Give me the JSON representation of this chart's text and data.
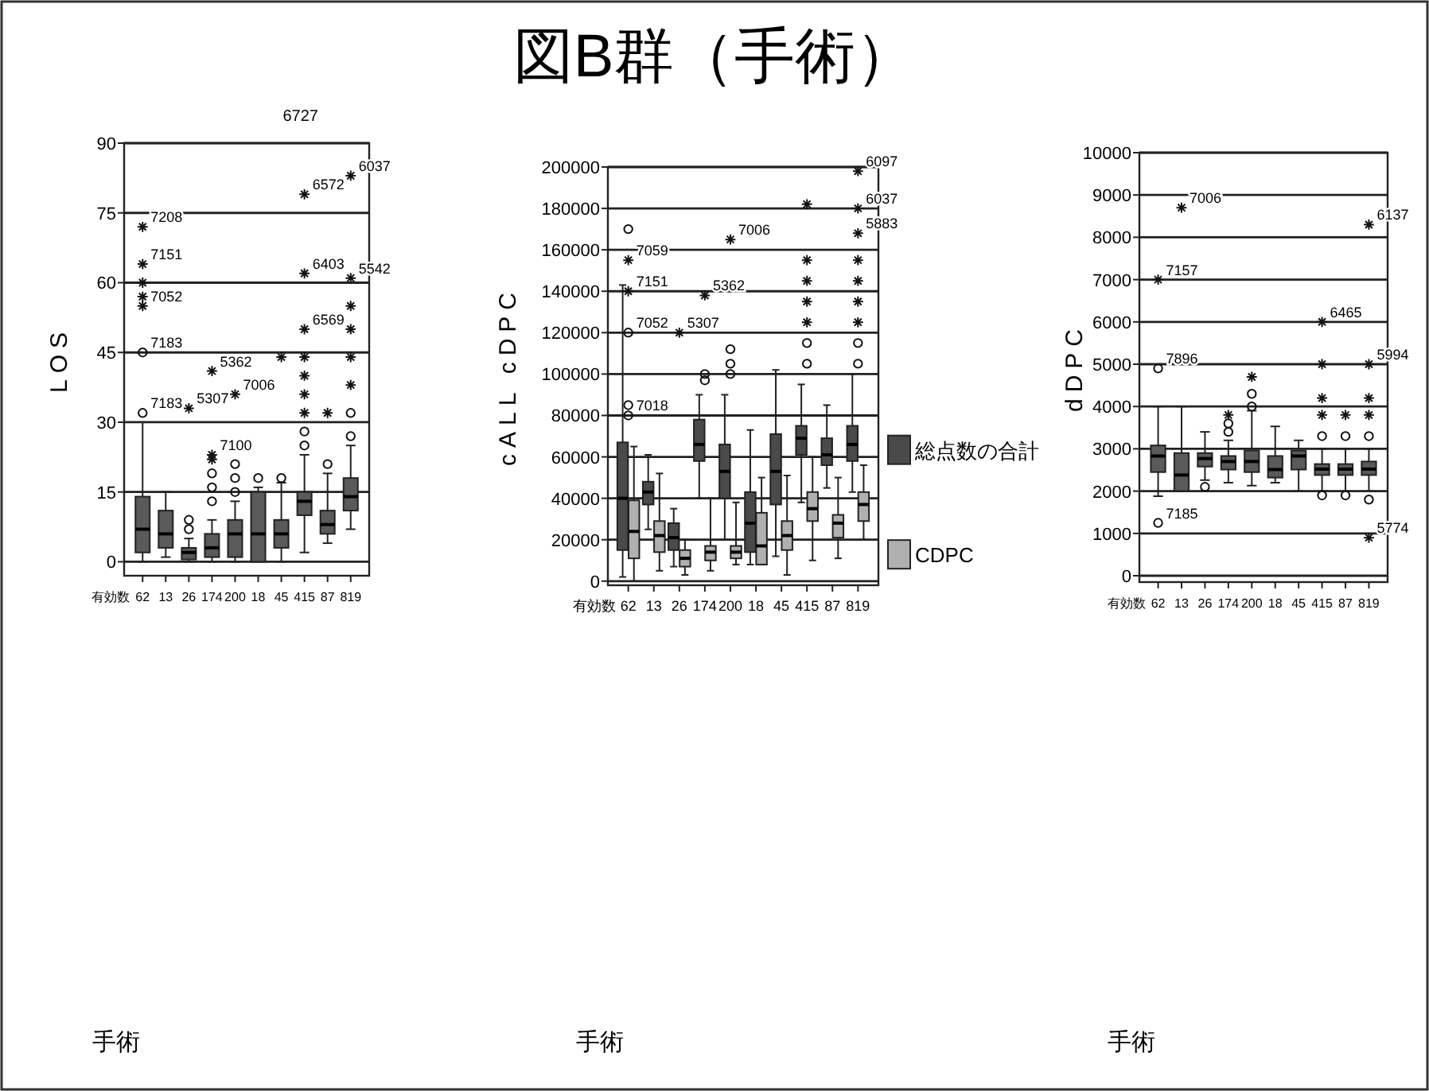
{
  "chart_data": [
    {
      "type": "box",
      "ylabel": "LOS",
      "xlabel": "手術",
      "categories": [
        "62",
        "13",
        "26",
        "174",
        "200",
        "18",
        "45",
        "415",
        "87",
        "819"
      ],
      "ylim": [
        -3,
        90
      ],
      "yticks": [
        0,
        15,
        30,
        45,
        60,
        75,
        90
      ],
      "grid": "y",
      "series": [
        {
          "color": "#5a5a5a",
          "boxes": [
            {
              "low": 0,
              "q1": 2,
              "median": 7,
              "q3": 14,
              "high": 30
            },
            {
              "low": 1,
              "q1": 3,
              "median": 6,
              "q3": 11,
              "high": 15
            },
            {
              "low": 0,
              "q1": 0.5,
              "median": 2,
              "q3": 3,
              "high": 5
            },
            {
              "low": 0,
              "q1": 1,
              "median": 3,
              "q3": 6,
              "high": 9
            },
            {
              "low": 0,
              "q1": 1,
              "median": 6,
              "q3": 9,
              "high": 13
            },
            {
              "low": 0,
              "q1": 0,
              "median": 6,
              "q3": 15,
              "high": 16
            },
            {
              "low": 0,
              "q1": 3,
              "median": 6,
              "q3": 9,
              "high": 17
            },
            {
              "low": 2,
              "q1": 10,
              "median": 13,
              "q3": 15,
              "high": 23
            },
            {
              "low": 4,
              "q1": 6,
              "median": 8,
              "q3": 11,
              "high": 19
            },
            {
              "low": 7,
              "q1": 11,
              "median": 14,
              "q3": 18,
              "high": 25
            }
          ]
        },
        {
          "type": "scatter",
          "marker": "circle",
          "color": "#111111",
          "x": [
            "62",
            "62",
            "26",
            "26",
            "174",
            "174",
            "174",
            "200",
            "200",
            "200",
            "18",
            "45",
            "415",
            "415",
            "87",
            "819",
            "819"
          ],
          "values": [
            32,
            45,
            7,
            9,
            13,
            16,
            19,
            15,
            18,
            21,
            18,
            18,
            25,
            28,
            21,
            27,
            32
          ]
        },
        {
          "type": "scatter",
          "marker": "cross",
          "color": "#111111",
          "x": [
            "62",
            "62",
            "62",
            "62",
            "62",
            "26",
            "174",
            "174",
            "174",
            "200",
            "45",
            "415",
            "415",
            "415",
            "415",
            "415",
            "415",
            "415",
            "87",
            "819",
            "819",
            "819",
            "819",
            "819",
            "819"
          ],
          "values": [
            55,
            57,
            60,
            64,
            72,
            33,
            22,
            23,
            41,
            36,
            44,
            32,
            36,
            40,
            44,
            50,
            62,
            79,
            32,
            38,
            44,
            50,
            55,
            61,
            83
          ]
        }
      ],
      "annotations": [
        "有効数",
        "6727",
        {
          "text": "7183",
          "x": "62",
          "y": 32
        },
        {
          "text": "7183",
          "x": "62",
          "y": 45
        },
        {
          "text": "7052",
          "x": "62",
          "y": 55
        },
        {
          "text": "7151",
          "x": "62",
          "y": 64
        },
        {
          "text": "7208",
          "x": "62",
          "y": 72
        },
        {
          "text": "5307",
          "x": "26",
          "y": 33
        },
        {
          "text": "7100",
          "x": "174",
          "y": 23
        },
        {
          "text": "5362",
          "x": "174",
          "y": 41
        },
        {
          "text": "7006",
          "x": "200",
          "y": 36
        },
        {
          "text": "6569",
          "x": "415",
          "y": 50
        },
        {
          "text": "6403",
          "x": "415",
          "y": 62
        },
        {
          "text": "6572",
          "x": "415",
          "y": 79
        },
        {
          "text": "5542",
          "x": "819",
          "y": 61
        },
        {
          "text": "6037",
          "x": "819",
          "y": 83
        }
      ]
    },
    {
      "type": "box",
      "title": "図B群（手術）",
      "ylabel": "cALL cDPC",
      "xlabel": "手術",
      "categories": [
        "62",
        "13",
        "26",
        "174",
        "200",
        "18",
        "45",
        "415",
        "87",
        "819"
      ],
      "ylim": [
        -2000,
        200000
      ],
      "yticks": [
        0,
        20000,
        40000,
        60000,
        80000,
        100000,
        120000,
        140000,
        160000,
        180000,
        200000
      ],
      "grid": "y",
      "legend": "right",
      "series": [
        {
          "name": "総点数の合計",
          "color": "#4a4a4a",
          "boxes": [
            {
              "low": 2000,
              "q1": 15000,
              "median": 40000,
              "q3": 67000,
              "high": 143000
            },
            {
              "low": 25000,
              "q1": 37000,
              "median": 43000,
              "q3": 48000,
              "high": 61000
            },
            {
              "low": 7000,
              "q1": 15000,
              "median": 21000,
              "q3": 28000,
              "high": 35000
            },
            {
              "low": 40000,
              "q1": 58000,
              "median": 66000,
              "q3": 78000,
              "high": 90000
            },
            {
              "low": 20000,
              "q1": 40000,
              "median": 53000,
              "q3": 66000,
              "high": 90000
            },
            {
              "low": 8000,
              "q1": 14000,
              "median": 28000,
              "q3": 43000,
              "high": 73000
            },
            {
              "low": 12000,
              "q1": 37000,
              "median": 53000,
              "q3": 71000,
              "high": 102000
            },
            {
              "low": 38000,
              "q1": 61000,
              "median": 69000,
              "q3": 75000,
              "high": 95000
            },
            {
              "low": 45000,
              "q1": 56000,
              "median": 61000,
              "q3": 69000,
              "high": 85000
            },
            {
              "low": 43000,
              "q1": 58000,
              "median": 66000,
              "q3": 75000,
              "high": 100000
            }
          ]
        },
        {
          "name": "CDPC",
          "color": "#b0b0b0",
          "boxes": [
            {
              "low": 0,
              "q1": 11000,
              "median": 24000,
              "q3": 39000,
              "high": 65000
            },
            {
              "low": 5000,
              "q1": 14000,
              "median": 22000,
              "q3": 29000,
              "high": 52000
            },
            {
              "low": 3000,
              "q1": 7000,
              "median": 11000,
              "q3": 15000,
              "high": 20000
            },
            {
              "low": 5000,
              "q1": 10000,
              "median": 14000,
              "q3": 17000,
              "high": 40000
            },
            {
              "low": 8000,
              "q1": 11000,
              "median": 14000,
              "q3": 17000,
              "high": 38000
            },
            {
              "low": 8000,
              "q1": 8000,
              "median": 17000,
              "q3": 33000,
              "high": 50000
            },
            {
              "low": 3000,
              "q1": 15000,
              "median": 22000,
              "q3": 29000,
              "high": 51000
            },
            {
              "low": 10000,
              "q1": 29000,
              "median": 35000,
              "q3": 43000,
              "high": 60000
            },
            {
              "low": 11000,
              "q1": 21000,
              "median": 28000,
              "q3": 32000,
              "high": 50000
            },
            {
              "low": 20000,
              "q1": 29000,
              "median": 37000,
              "q3": 43000,
              "high": 56000
            }
          ]
        },
        {
          "type": "scatter",
          "marker": "circle",
          "color": "#111111",
          "x": [
            "62",
            "62",
            "62",
            "62",
            "174",
            "174",
            "200",
            "200",
            "200",
            "415",
            "415",
            "819",
            "819"
          ],
          "values": [
            80000,
            85000,
            120000,
            170000,
            97000,
            100000,
            100000,
            105000,
            112000,
            105000,
            115000,
            105000,
            115000
          ]
        },
        {
          "type": "scatter",
          "marker": "cross",
          "color": "#111111",
          "x": [
            "62",
            "62",
            "26",
            "174",
            "200",
            "415",
            "415",
            "415",
            "415",
            "415",
            "819",
            "819",
            "819",
            "819",
            "819",
            "819",
            "819"
          ],
          "values": [
            140000,
            155000,
            120000,
            138000,
            165000,
            125000,
            135000,
            145000,
            155000,
            182000,
            125000,
            135000,
            145000,
            155000,
            168000,
            180000,
            198000
          ]
        }
      ],
      "annotations": [
        "有効数",
        {
          "text": "7018",
          "x": "62",
          "y": 80000
        },
        {
          "text": "7052",
          "x": "62",
          "y": 120000
        },
        {
          "text": "7151",
          "x": "62",
          "y": 140000
        },
        {
          "text": "7059",
          "x": "62",
          "y": 155000
        },
        {
          "text": "5307",
          "x": "26",
          "y": 120000
        },
        {
          "text": "5362",
          "x": "174",
          "y": 138000
        },
        {
          "text": "7006",
          "x": "200",
          "y": 165000
        },
        {
          "text": "5883",
          "x": "819",
          "y": 168000
        },
        {
          "text": "6037",
          "x": "819",
          "y": 180000
        },
        {
          "text": "6097",
          "x": "819",
          "y": 198000
        }
      ]
    },
    {
      "type": "box",
      "ylabel": "dDPC",
      "xlabel": "手術",
      "categories": [
        "62",
        "13",
        "26",
        "174",
        "200",
        "18",
        "45",
        "415",
        "87",
        "819"
      ],
      "ylim": [
        -150,
        10000
      ],
      "yticks": [
        0,
        1000,
        2000,
        3000,
        4000,
        5000,
        6000,
        7000,
        8000,
        9000,
        10000
      ],
      "grid": "y",
      "series": [
        {
          "color": "#5a5a5a",
          "boxes": [
            {
              "low": 1880,
              "q1": 2450,
              "median": 2830,
              "q3": 3080,
              "high": 4000
            },
            {
              "low": 2000,
              "q1": 2000,
              "median": 2380,
              "q3": 2900,
              "high": 4000
            },
            {
              "low": 2260,
              "q1": 2580,
              "median": 2770,
              "q3": 2900,
              "high": 3400
            },
            {
              "low": 2200,
              "q1": 2510,
              "median": 2700,
              "q3": 2830,
              "high": 3200
            },
            {
              "low": 2130,
              "q1": 2450,
              "median": 2700,
              "q3": 2960,
              "high": 3900
            },
            {
              "low": 2200,
              "q1": 2320,
              "median": 2510,
              "q3": 2830,
              "high": 3530
            },
            {
              "low": 2000,
              "q1": 2510,
              "median": 2830,
              "q3": 2960,
              "high": 3200
            },
            {
              "low": 2000,
              "q1": 2380,
              "median": 2520,
              "q3": 2640,
              "high": 3000
            },
            {
              "low": 2000,
              "q1": 2380,
              "median": 2520,
              "q3": 2640,
              "high": 3000
            },
            {
              "low": 2000,
              "q1": 2380,
              "median": 2520,
              "q3": 2700,
              "high": 3000
            }
          ]
        },
        {
          "type": "scatter",
          "marker": "circle",
          "color": "#111111",
          "x": [
            "62",
            "62",
            "26",
            "174",
            "174",
            "200",
            "200",
            "415",
            "415",
            "87",
            "87",
            "819",
            "819"
          ],
          "values": [
            1250,
            4900,
            2100,
            3400,
            3600,
            4000,
            4300,
            1900,
            3300,
            1900,
            3300,
            1800,
            3300
          ]
        },
        {
          "type": "scatter",
          "marker": "cross",
          "color": "#111111",
          "x": [
            "62",
            "13",
            "174",
            "200",
            "415",
            "415",
            "415",
            "415",
            "87",
            "819",
            "819",
            "819",
            "819",
            "819"
          ],
          "values": [
            7000,
            8700,
            3800,
            4700,
            3800,
            4200,
            5000,
            6000,
            3800,
            900,
            3800,
            4200,
            5000,
            8300
          ]
        }
      ],
      "annotations": [
        "有効数",
        {
          "text": "7185",
          "x": "62",
          "y": 1250
        },
        {
          "text": "7896",
          "x": "62",
          "y": 4900
        },
        {
          "text": "7157",
          "x": "62",
          "y": 7000
        },
        {
          "text": "7006",
          "x": "13",
          "y": 8700
        },
        {
          "text": "6465",
          "x": "415",
          "y": 6000
        },
        {
          "text": "5774",
          "x": "819",
          "y": 900
        },
        {
          "text": "5994",
          "x": "819",
          "y": 5000
        },
        {
          "text": "6137",
          "x": "819",
          "y": 8300
        }
      ]
    }
  ]
}
